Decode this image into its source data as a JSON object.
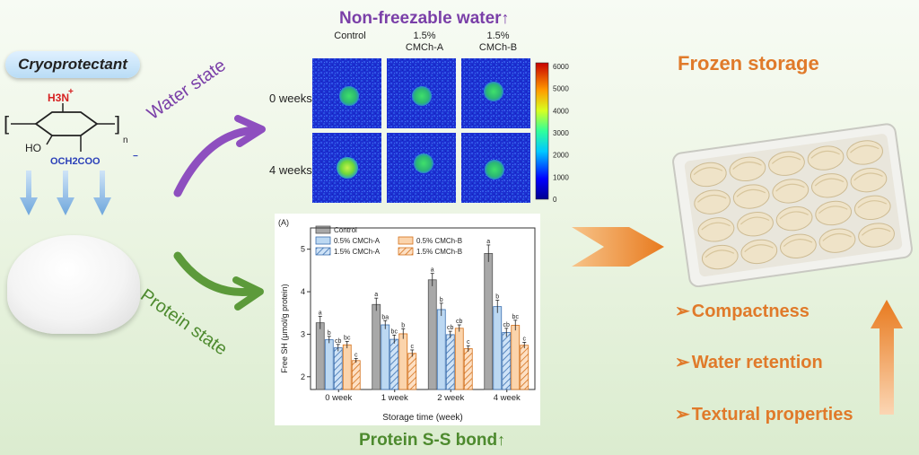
{
  "cryoprotectant": "Cryoprotectant",
  "molecule": {
    "amine": "H3N",
    "plus": "+",
    "ho": "HO",
    "side_chain": "OCH2COO",
    "minus": "−",
    "subscript": "n"
  },
  "water_state": "Water state",
  "protein_state": "Protein state",
  "nonfreezable_title": "Non-freezable water",
  "columns": [
    {
      "line1": "",
      "line2": "Control"
    },
    {
      "line1": "1.5%",
      "line2": "CMCh-A"
    },
    {
      "line1": "1.5%",
      "line2": "CMCh-B"
    }
  ],
  "rows": [
    "0 weeks",
    "4 weeks"
  ],
  "colorbar_ticks": [
    "6000",
    "5000",
    "4000",
    "3000",
    "2000",
    "1000",
    "0"
  ],
  "frozen_storage": "Frozen storage",
  "properties": [
    "Compactness",
    "Water retention",
    "Textural properties"
  ],
  "protein_ss_title": "Protein S-S bond",
  "colors": {
    "purple": "#7a3fa8",
    "green": "#4d8a2e",
    "orange": "#e07a2a"
  },
  "chart_data": {
    "type": "bar",
    "panel_label": "(A)",
    "categories": [
      "0 week",
      "1 week",
      "2 week",
      "4 week"
    ],
    "series": [
      {
        "name": "Control",
        "values": [
          3.27,
          3.7,
          4.28,
          4.9
        ],
        "errors": [
          0.15,
          0.15,
          0.15,
          0.2
        ],
        "letters": [
          "a",
          "a",
          "a",
          "a"
        ]
      },
      {
        "name": "0.5% CMCh-A",
        "values": [
          2.87,
          3.22,
          3.58,
          3.65
        ],
        "errors": [
          0.08,
          0.1,
          0.15,
          0.15
        ],
        "letters": [
          "b",
          "ba",
          "b",
          "b"
        ]
      },
      {
        "name": "1.5% CMCh-A",
        "values": [
          2.68,
          2.88,
          2.99,
          3.04
        ],
        "errors": [
          0.08,
          0.1,
          0.08,
          0.1
        ],
        "letters": [
          "cb",
          "bc",
          "cb",
          "cb"
        ]
      },
      {
        "name": "0.5% CMCh-B",
        "values": [
          2.75,
          3.01,
          3.14,
          3.21
        ],
        "errors": [
          0.08,
          0.12,
          0.08,
          0.12
        ],
        "letters": [
          "bc",
          "b",
          "cb",
          "bc"
        ]
      },
      {
        "name": "1.5% CMCh-B",
        "values": [
          2.38,
          2.55,
          2.66,
          2.74
        ],
        "errors": [
          0.05,
          0.08,
          0.07,
          0.07
        ],
        "letters": [
          "c",
          "c",
          "c",
          "c"
        ]
      }
    ],
    "xlabel": "Storage time (week)",
    "ylabel": "Free SH (μmol/g protein)",
    "ylim": [
      1.7,
      5.5
    ],
    "yticks": [
      2,
      3,
      4,
      5
    ]
  }
}
